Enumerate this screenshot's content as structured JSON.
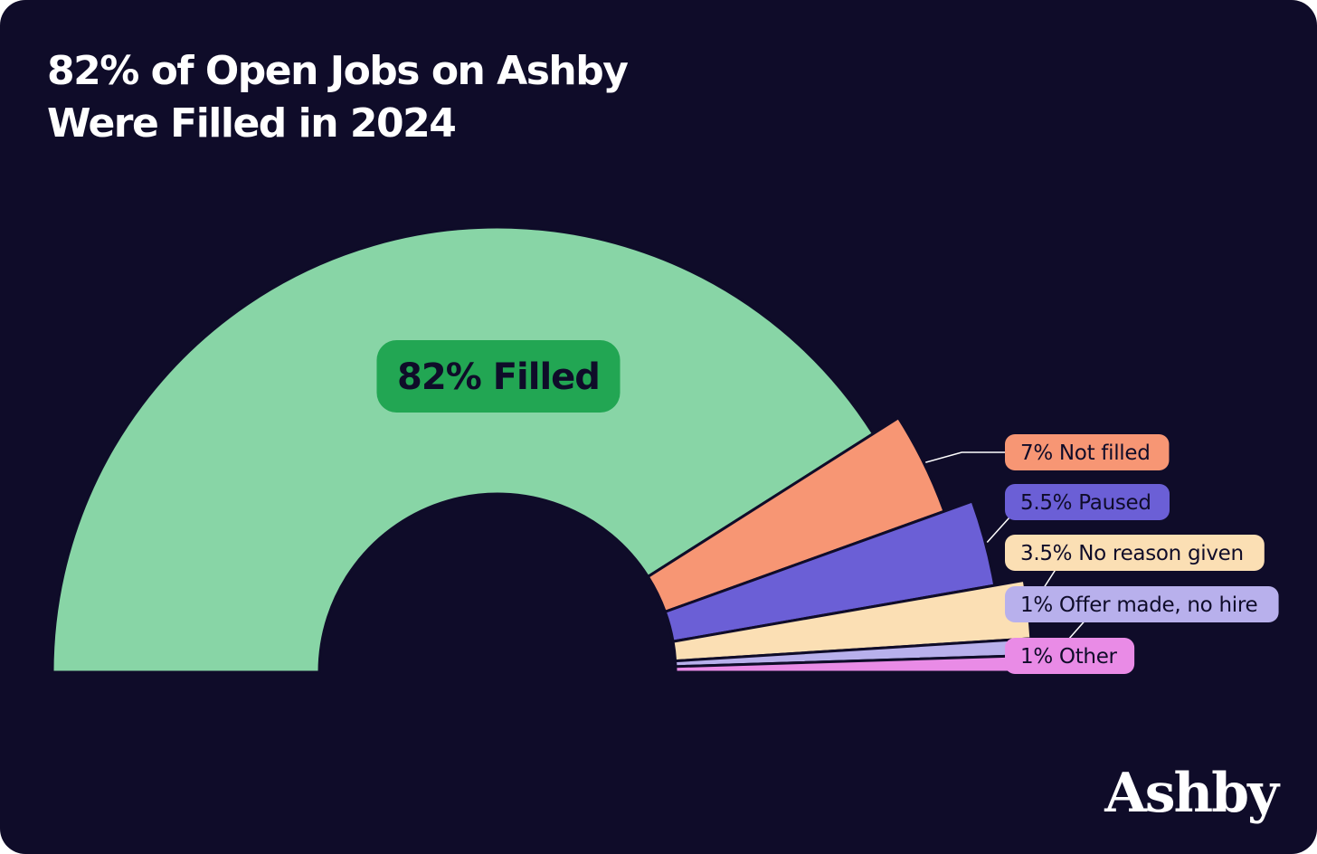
{
  "chart_data": {
    "type": "pie",
    "variant": "semi-donut",
    "title": [
      "82% of Open Jobs on Ashby",
      "Were Filled in 2024"
    ],
    "slices": [
      {
        "label": "82% Filled",
        "value": 82,
        "color": "#88d5a6",
        "badge_color": "#22a653",
        "text_color": "#0f0c29"
      },
      {
        "label": "7% Not filled",
        "value": 7,
        "color": "#f79674",
        "badge_color": "#f79674",
        "text_color": "#0f0c29"
      },
      {
        "label": "5.5% Paused",
        "value": 5.5,
        "color": "#6b5fd6",
        "badge_color": "#6b5fd6",
        "text_color": "#0f0c29"
      },
      {
        "label": "3.5% No reason given",
        "value": 3.5,
        "color": "#fbdfb4",
        "badge_color": "#fbdfb4",
        "text_color": "#0f0c29"
      },
      {
        "label": "1% Offer made, no hire",
        "value": 1,
        "color": "#b8b0ec",
        "badge_color": "#b8b0ec",
        "text_color": "#0f0c29"
      },
      {
        "label": "1% Other",
        "value": 1,
        "color": "#e98be6",
        "badge_color": "#e98be6",
        "text_color": "#0f0c29"
      }
    ],
    "legend": "right"
  },
  "brand": {
    "logo_text": "Ashby"
  },
  "colors": {
    "background": "#0f0c29",
    "text": "#ffffff"
  }
}
